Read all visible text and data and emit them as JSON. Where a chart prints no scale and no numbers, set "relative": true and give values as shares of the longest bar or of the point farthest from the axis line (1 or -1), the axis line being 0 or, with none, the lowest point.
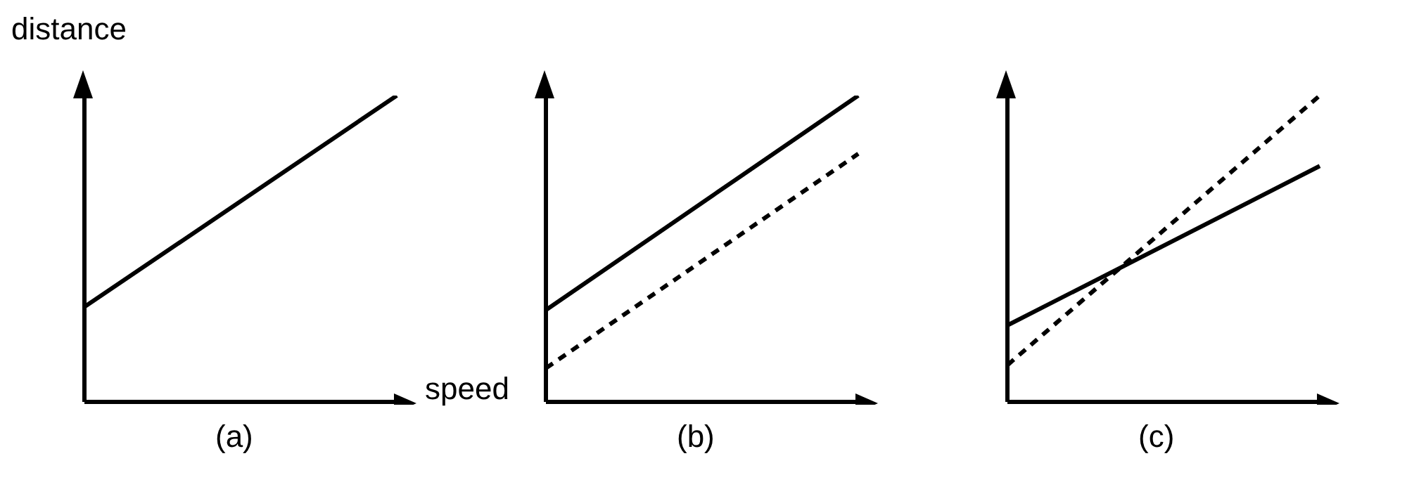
{
  "chart_data": [
    {
      "type": "line",
      "relative": true,
      "title": "(a)",
      "xlabel": "speed",
      "ylabel": "distance",
      "categories": [
        null,
        null
      ],
      "series": [
        {
          "color": "#000000",
          "line_style": "solid",
          "values": [
            0.31,
            1
          ]
        }
      ]
    },
    {
      "type": "line",
      "relative": true,
      "title": "(b)",
      "categories": [
        null,
        null
      ],
      "series": [
        {
          "color": "#000000",
          "line_style": "solid",
          "values": [
            0.3,
            1
          ]
        },
        {
          "color": "#000000",
          "line_style": "dashed",
          "values": [
            0.11,
            0.81
          ]
        }
      ]
    },
    {
      "type": "line",
      "relative": true,
      "title": "(c)",
      "categories": [
        null,
        null
      ],
      "series": [
        {
          "color": "#000000",
          "line_style": "solid",
          "values": [
            0.25,
            0.77
          ]
        },
        {
          "color": "#000000",
          "line_style": "dashed",
          "values": [
            0.12,
            1
          ]
        }
      ]
    }
  ]
}
